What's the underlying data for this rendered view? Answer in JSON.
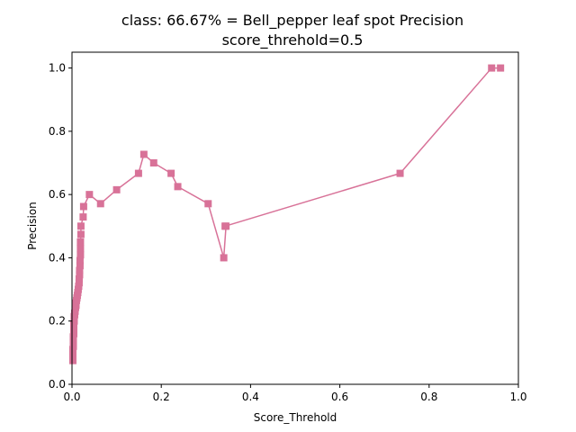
{
  "chart_data": {
    "type": "line",
    "title": "class: 66.67% = Bell_pepper leaf spot Precision",
    "subtitle": "score_threhold=0.5",
    "xlabel": "Score_Threhold",
    "ylabel": "Precision",
    "xlim": [
      0.0,
      1.0
    ],
    "ylim": [
      0.0,
      1.05
    ],
    "xticks": [
      "0.0",
      "0.2",
      "0.4",
      "0.6",
      "0.8",
      "1.0"
    ],
    "yticks": [
      "0.0",
      "0.2",
      "0.4",
      "0.6",
      "0.8",
      "1.0"
    ],
    "xtick_values": [
      0.0,
      0.2,
      0.4,
      0.6,
      0.8,
      1.0
    ],
    "ytick_values": [
      0.0,
      0.2,
      0.4,
      0.6,
      0.8,
      1.0
    ],
    "grid": false,
    "series": [
      {
        "color": "#d87298",
        "marker": "square",
        "x": [
          0.96,
          0.94,
          0.735,
          0.343,
          0.345,
          0.34,
          0.305,
          0.237,
          0.222,
          0.183,
          0.161,
          0.149,
          0.1,
          0.064,
          0.039,
          0.026,
          0.025,
          0.02,
          0.02,
          0.019,
          0.019,
          0.019,
          0.018,
          0.018,
          0.017,
          0.017,
          0.016,
          0.016,
          0.015,
          0.014,
          0.013,
          0.012,
          0.011,
          0.01,
          0.009,
          0.009,
          0.008,
          0.007,
          0.007,
          0.006,
          0.006,
          0.005,
          0.005,
          0.005,
          0.004,
          0.004,
          0.004,
          0.004,
          0.003,
          0.003,
          0.003,
          0.003,
          0.002,
          0.002,
          0.002,
          0.002,
          0.002,
          0.002,
          0.002
        ],
        "y": [
          1.0,
          1.0,
          0.667,
          0.5,
          0.5,
          0.4,
          0.571,
          0.625,
          0.667,
          0.7,
          0.727,
          0.667,
          0.615,
          0.571,
          0.6,
          0.562,
          0.529,
          0.5,
          0.474,
          0.45,
          0.429,
          0.409,
          0.391,
          0.375,
          0.36,
          0.346,
          0.333,
          0.321,
          0.31,
          0.3,
          0.29,
          0.281,
          0.273,
          0.265,
          0.257,
          0.25,
          0.243,
          0.237,
          0.231,
          0.225,
          0.22,
          0.214,
          0.209,
          0.2,
          0.19,
          0.18,
          0.17,
          0.16,
          0.15,
          0.14,
          0.13,
          0.12,
          0.11,
          0.1,
          0.095,
          0.09,
          0.085,
          0.08,
          0.075
        ]
      }
    ]
  }
}
